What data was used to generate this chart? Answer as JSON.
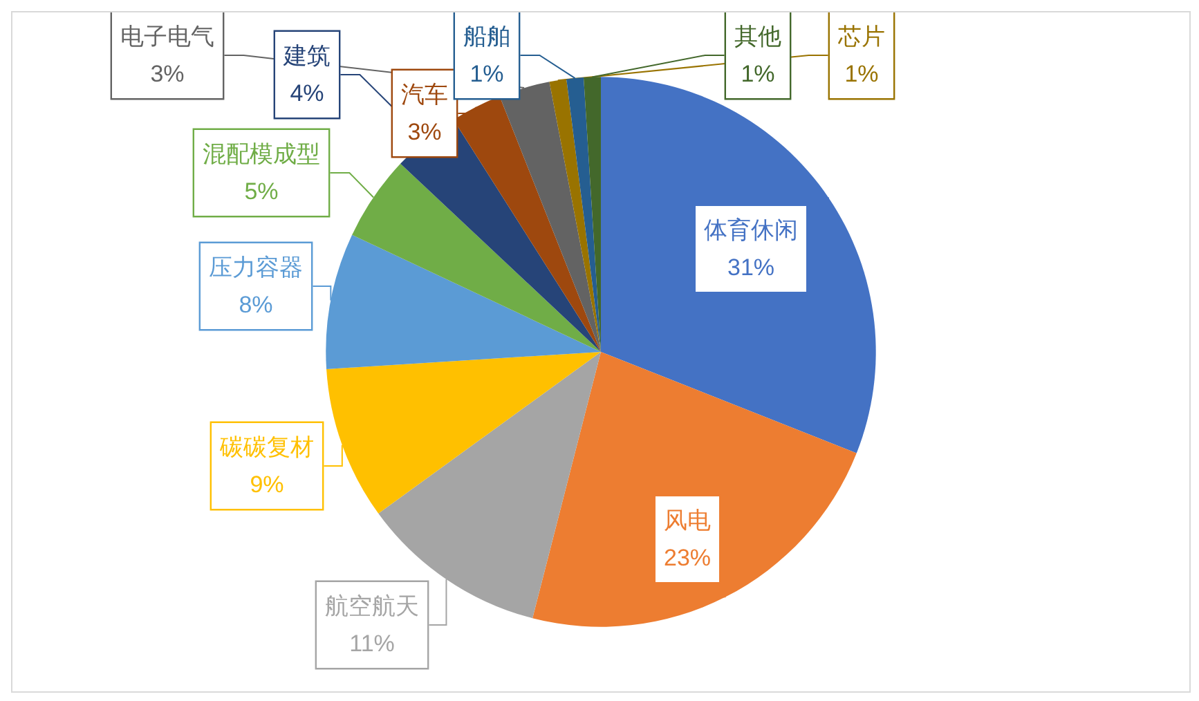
{
  "chart_data": {
    "type": "pie",
    "categories": [
      "体育休闲",
      "风电",
      "航空航天",
      "碳碳复材",
      "压力容器",
      "混配模成型",
      "建筑",
      "汽车",
      "电子电气",
      "芯片",
      "船舶",
      "其他"
    ],
    "values": [
      31,
      23,
      11,
      9,
      8,
      5,
      4,
      3,
      3,
      1,
      1,
      1
    ],
    "value_labels": [
      "31%",
      "23%",
      "11%",
      "9%",
      "8%",
      "5%",
      "4%",
      "3%",
      "3%",
      "1%",
      "1%",
      "1%"
    ],
    "colors": [
      "#4472c4",
      "#ed7d31",
      "#a5a5a5",
      "#ffc000",
      "#5b9bd5",
      "#70ad47",
      "#264478",
      "#9e480e",
      "#636363",
      "#997300",
      "#255e91",
      "#43682b"
    ]
  }
}
